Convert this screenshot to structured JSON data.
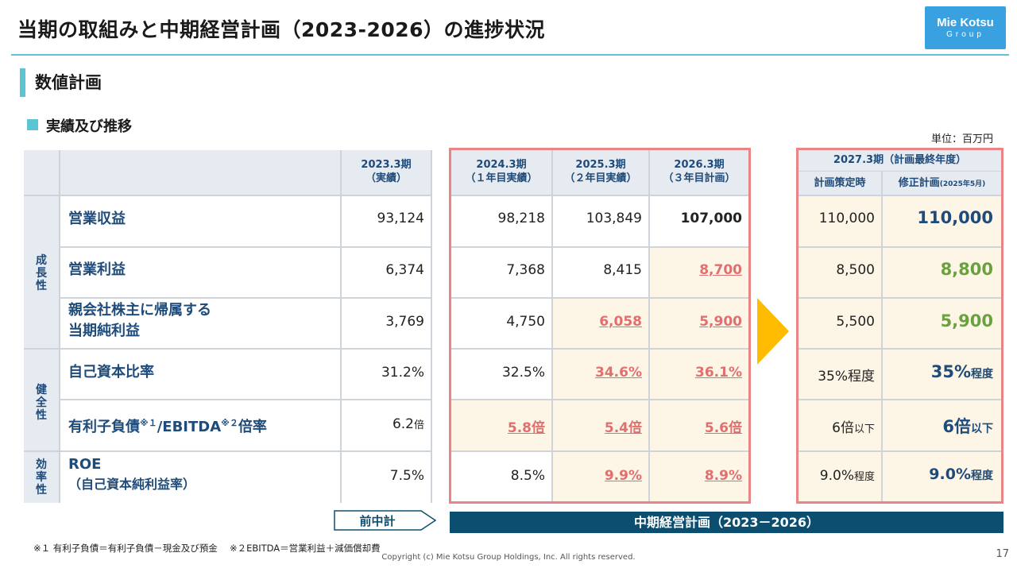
{
  "header": {
    "title": "当期の取組みと中期経営計画（2023-2026）の進捗状況",
    "logo_line1": "Mie Kotsu",
    "logo_line2": "Group"
  },
  "section": {
    "title": "数値計画",
    "subtitle": "実績及び推移",
    "unit": "単位：百万円"
  },
  "columns": {
    "c2023": [
      "2023.3期",
      "（実績）"
    ],
    "c2024": [
      "2024.3期",
      "（１年目実績）"
    ],
    "c2025": [
      "2025.3期",
      "（２年目実績）"
    ],
    "c2026": [
      "2026.3期",
      "（３年目計画）"
    ],
    "c2027": "2027.3期（計画最終年度）",
    "c2027a": "計画策定時",
    "c2027b_main": "修正計画",
    "c2027b_sub": "(2025年5月)"
  },
  "categories": {
    "growth": [
      "成",
      "長",
      "性"
    ],
    "health": [
      "健",
      "全",
      "性"
    ],
    "efficiency": [
      "効",
      "率",
      "性"
    ]
  },
  "rows": [
    {
      "label": "営業収益",
      "label2": "",
      "v2023": "93,124",
      "v2024": "98,218",
      "v2025": "103,849",
      "v2026": "107,000",
      "v2027a": "110,000",
      "v2027b": "110,000"
    },
    {
      "label": "営業利益",
      "label2": "",
      "v2023": "6,374",
      "v2024": "7,368",
      "v2025": "8,415",
      "v2026": "8,700",
      "v2027a": "8,500",
      "v2027b": "8,800"
    },
    {
      "label": "親会社株主に帰属する",
      "label2": "当期純利益",
      "v2023": "3,769",
      "v2024": "4,750",
      "v2025": "6,058",
      "v2026": "5,900",
      "v2027a": "5,500",
      "v2027b": "5,900"
    },
    {
      "label": "自己資本比率",
      "label2": "",
      "v2023": "31.2%",
      "v2024": "32.5%",
      "v2025": "34.6%",
      "v2026": "36.1%",
      "v2027a": "35%程度",
      "v2027b_num": "35%",
      "v2027b_suffix": "程度"
    },
    {
      "label_a": "有利子負債",
      "label_sup1": "※１",
      "label_b": "/EBITDA",
      "label_sup2": "※２",
      "label_c": "倍率",
      "v2023_num": "6.2",
      "v2023_suf": "倍",
      "v2024_num": "5.8倍",
      "v2025_num": "5.4倍",
      "v2026_num": "5.6倍",
      "v2027a_num": "6倍",
      "v2027a_suf": "以下",
      "v2027b_num": "6倍",
      "v2027b_suffix": "以下"
    },
    {
      "label": "ROE",
      "label2": "（自己資本純利益率）",
      "v2023": "7.5%",
      "v2024": "8.5%",
      "v2025": "9.9%",
      "v2026": "8.9%",
      "v2027a_num": "9.0%",
      "v2027a_suf": "程度",
      "v2027b_num": "9.0%",
      "v2027b_suffix": "程度"
    }
  ],
  "footer": {
    "prev_plan": "前中計",
    "mid_plan": "中期経営計画（2023－2026）",
    "note": "※１ 有利子負債＝有利子負債－現金及び預金　 ※２EBITDA＝営業利益＋減価償却費",
    "copyright": "Copyright (c) Mie Kotsu Group Holdings, Inc. All rights reserved.",
    "page": "17"
  },
  "colors": {
    "accent": "#5bc5d3",
    "navy": "#1e4b7a",
    "highlight_red": "#e0706f",
    "green": "#6aa13e",
    "arrow": "#ffbb00",
    "plan_bar": "#0c4e70"
  }
}
